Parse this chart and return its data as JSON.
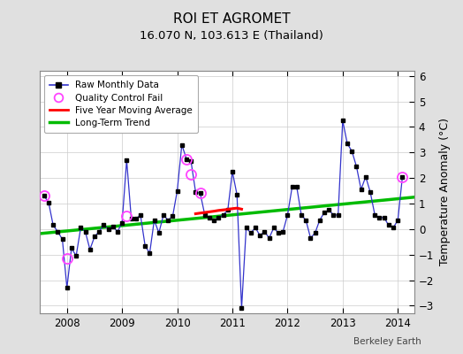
{
  "title": "ROI ET AGROMET",
  "subtitle": "16.070 N, 103.613 E (Thailand)",
  "ylabel": "Temperature Anomaly (°C)",
  "footer": "Berkeley Earth",
  "xlim": [
    2007.5,
    2014.3
  ],
  "ylim": [
    -3.3,
    6.2
  ],
  "yticks": [
    -3,
    -2,
    -1,
    0,
    1,
    2,
    3,
    4,
    5,
    6
  ],
  "background_color": "#e0e0e0",
  "plot_bg_color": "#ffffff",
  "raw_data": [
    [
      2007.583,
      1.3
    ],
    [
      2007.667,
      1.05
    ],
    [
      2007.75,
      0.15
    ],
    [
      2007.833,
      -0.1
    ],
    [
      2007.917,
      -0.4
    ],
    [
      2008.0,
      -2.3
    ],
    [
      2008.083,
      -0.75
    ],
    [
      2008.167,
      -1.05
    ],
    [
      2008.25,
      0.05
    ],
    [
      2008.333,
      -0.1
    ],
    [
      2008.417,
      -0.8
    ],
    [
      2008.5,
      -0.3
    ],
    [
      2008.583,
      -0.1
    ],
    [
      2008.667,
      0.15
    ],
    [
      2008.75,
      0.0
    ],
    [
      2008.833,
      0.1
    ],
    [
      2008.917,
      -0.1
    ],
    [
      2009.0,
      0.25
    ],
    [
      2009.083,
      2.7
    ],
    [
      2009.167,
      0.4
    ],
    [
      2009.25,
      0.4
    ],
    [
      2009.333,
      0.55
    ],
    [
      2009.417,
      -0.65
    ],
    [
      2009.5,
      -0.95
    ],
    [
      2009.583,
      0.35
    ],
    [
      2009.667,
      -0.15
    ],
    [
      2009.75,
      0.55
    ],
    [
      2009.833,
      0.35
    ],
    [
      2009.917,
      0.5
    ],
    [
      2010.0,
      1.5
    ],
    [
      2010.083,
      3.3
    ],
    [
      2010.167,
      2.75
    ],
    [
      2010.25,
      2.65
    ],
    [
      2010.333,
      1.45
    ],
    [
      2010.417,
      1.4
    ],
    [
      2010.5,
      0.55
    ],
    [
      2010.583,
      0.45
    ],
    [
      2010.667,
      0.35
    ],
    [
      2010.75,
      0.45
    ],
    [
      2010.833,
      0.55
    ],
    [
      2010.917,
      0.75
    ],
    [
      2011.0,
      2.25
    ],
    [
      2011.083,
      1.35
    ],
    [
      2011.167,
      -3.1
    ],
    [
      2011.25,
      0.05
    ],
    [
      2011.333,
      -0.15
    ],
    [
      2011.417,
      0.05
    ],
    [
      2011.5,
      -0.25
    ],
    [
      2011.583,
      -0.1
    ],
    [
      2011.667,
      -0.35
    ],
    [
      2011.75,
      0.05
    ],
    [
      2011.833,
      -0.15
    ],
    [
      2011.917,
      -0.1
    ],
    [
      2012.0,
      0.55
    ],
    [
      2012.083,
      1.65
    ],
    [
      2012.167,
      1.65
    ],
    [
      2012.25,
      0.55
    ],
    [
      2012.333,
      0.35
    ],
    [
      2012.417,
      -0.35
    ],
    [
      2012.5,
      -0.15
    ],
    [
      2012.583,
      0.35
    ],
    [
      2012.667,
      0.65
    ],
    [
      2012.75,
      0.75
    ],
    [
      2012.833,
      0.55
    ],
    [
      2012.917,
      0.55
    ],
    [
      2013.0,
      4.25
    ],
    [
      2013.083,
      3.35
    ],
    [
      2013.167,
      3.05
    ],
    [
      2013.25,
      2.45
    ],
    [
      2013.333,
      1.55
    ],
    [
      2013.417,
      2.05
    ],
    [
      2013.5,
      1.45
    ],
    [
      2013.583,
      0.55
    ],
    [
      2013.667,
      0.45
    ],
    [
      2013.75,
      0.45
    ],
    [
      2013.833,
      0.15
    ],
    [
      2013.917,
      0.05
    ],
    [
      2014.0,
      0.35
    ],
    [
      2014.083,
      2.05
    ]
  ],
  "qc_fail": [
    [
      2007.583,
      1.3
    ],
    [
      2008.0,
      -1.15
    ],
    [
      2009.083,
      0.5
    ],
    [
      2010.167,
      2.75
    ],
    [
      2010.25,
      2.15
    ],
    [
      2010.417,
      1.4
    ],
    [
      2014.083,
      2.05
    ]
  ],
  "moving_avg": [
    [
      2010.333,
      0.6
    ],
    [
      2010.5,
      0.65
    ],
    [
      2010.667,
      0.7
    ],
    [
      2010.75,
      0.73
    ],
    [
      2010.917,
      0.77
    ],
    [
      2011.0,
      0.8
    ],
    [
      2011.083,
      0.82
    ],
    [
      2011.167,
      0.78
    ]
  ],
  "trend_x": [
    2007.5,
    2014.3
  ],
  "trend_y": [
    -0.18,
    1.25
  ],
  "line_color": "#3333cc",
  "marker_color": "#000000",
  "qc_color": "#ff44ff",
  "moving_avg_color": "#ff0000",
  "trend_color": "#00bb00",
  "title_fontsize": 11,
  "subtitle_fontsize": 9.5,
  "axis_fontsize": 8.5,
  "label_fontsize": 9,
  "legend_fontsize": 7.5
}
